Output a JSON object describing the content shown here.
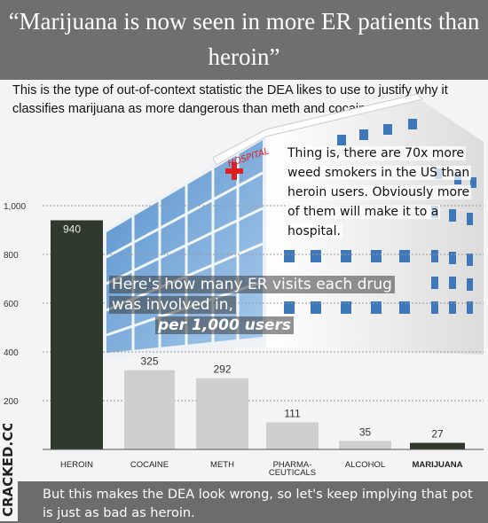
{
  "headline": "“Marijuana is now seen in more ER patients than heroin”",
  "intro_text": "This is the type of out-of-context statistic the DEA likes to use to justify why it classifies marijuana as more dangerous than meth and cocaine.",
  "hospital_sign": "HOSPITAL",
  "callout_top": "Thing is, there are 70x more weed smokers in the US than heroin users. Obviously more of them will make it to a hospital.",
  "callout_mid_line1": "Here's how many ER visits each drug was involved in,",
  "callout_mid_line2": "per 1,000 users",
  "footer_text": "But this makes the DEA look wrong, so let's keep implying that pot is just as bad as heroin.",
  "brand": "CRACKED.COM",
  "colors": {
    "header_bg": "#6f6f6f",
    "bar_dark": "#2f3a2c",
    "bar_light": "#cfcfcf",
    "footer_bg": "#6c6c6c"
  },
  "chart_data": {
    "type": "bar",
    "categories": [
      "HEROIN",
      "COCAINE",
      "METH",
      "PHARMA-CEUTICALS",
      "ALCOHOL",
      "MARIJUANA"
    ],
    "values": [
      940,
      325,
      292,
      111,
      35,
      27
    ],
    "value_labels": [
      "940",
      "325",
      "292",
      "111",
      "35",
      "27"
    ],
    "yticks": [
      "0",
      "200",
      "400",
      "600",
      "800",
      "1,000"
    ],
    "ytick_values": [
      0,
      200,
      400,
      600,
      800,
      1000
    ],
    "ylim": [
      0,
      1000
    ],
    "grid": true,
    "title": "",
    "xlabel": "",
    "ylabel": ""
  }
}
